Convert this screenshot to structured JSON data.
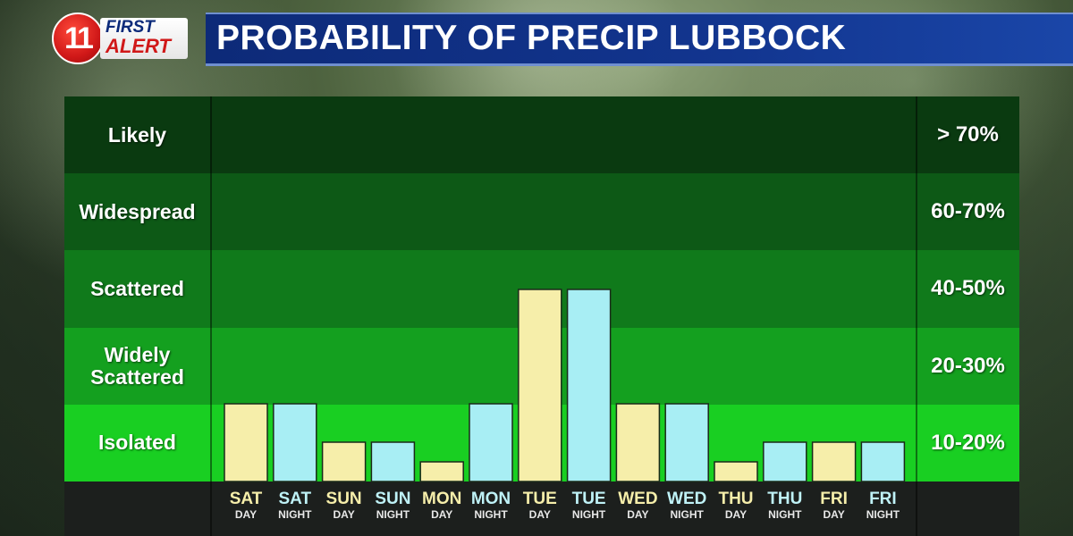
{
  "header": {
    "logo_number": "11",
    "logo_first": "FIRST",
    "logo_alert": "ALERT",
    "title": "PROBABILITY OF PRECIP LUBBOCK"
  },
  "chart_data": {
    "type": "bar",
    "title": "PROBABILITY OF PRECIP LUBBOCK",
    "bands": [
      {
        "label": "Likely",
        "range": "> 70%",
        "color": "#0a3a10"
      },
      {
        "label": "Widespread",
        "range": "60-70%",
        "color": "#0d5916"
      },
      {
        "label": "Scattered",
        "range": "40-50%",
        "color": "#107a1b"
      },
      {
        "label": "Widely Scattered",
        "range": "20-30%",
        "color": "#14a01f"
      },
      {
        "label": "Isolated",
        "range": "10-20%",
        "color": "#19cf22"
      }
    ],
    "band_values": [
      80,
      65,
      45,
      25,
      10
    ],
    "categories": [
      {
        "day": "SAT",
        "period": "DAY"
      },
      {
        "day": "SAT",
        "period": "NIGHT"
      },
      {
        "day": "SUN",
        "period": "DAY"
      },
      {
        "day": "SUN",
        "period": "NIGHT"
      },
      {
        "day": "MON",
        "period": "DAY"
      },
      {
        "day": "MON",
        "period": "NIGHT"
      },
      {
        "day": "TUE",
        "period": "DAY"
      },
      {
        "day": "TUE",
        "period": "NIGHT"
      },
      {
        "day": "WED",
        "period": "DAY"
      },
      {
        "day": "WED",
        "period": "NIGHT"
      },
      {
        "day": "THU",
        "period": "DAY"
      },
      {
        "day": "THU",
        "period": "NIGHT"
      },
      {
        "day": "FRI",
        "period": "DAY"
      },
      {
        "day": "FRI",
        "period": "NIGHT"
      }
    ],
    "values": [
      20,
      20,
      10,
      10,
      5,
      20,
      50,
      50,
      20,
      20,
      5,
      10,
      10,
      10
    ],
    "ylim": [
      0,
      90
    ],
    "colors": {
      "day": "#f6eeaa",
      "night": "#a8eef4",
      "day_text": "#f6eeaa",
      "night_text": "#bff2f7"
    }
  }
}
